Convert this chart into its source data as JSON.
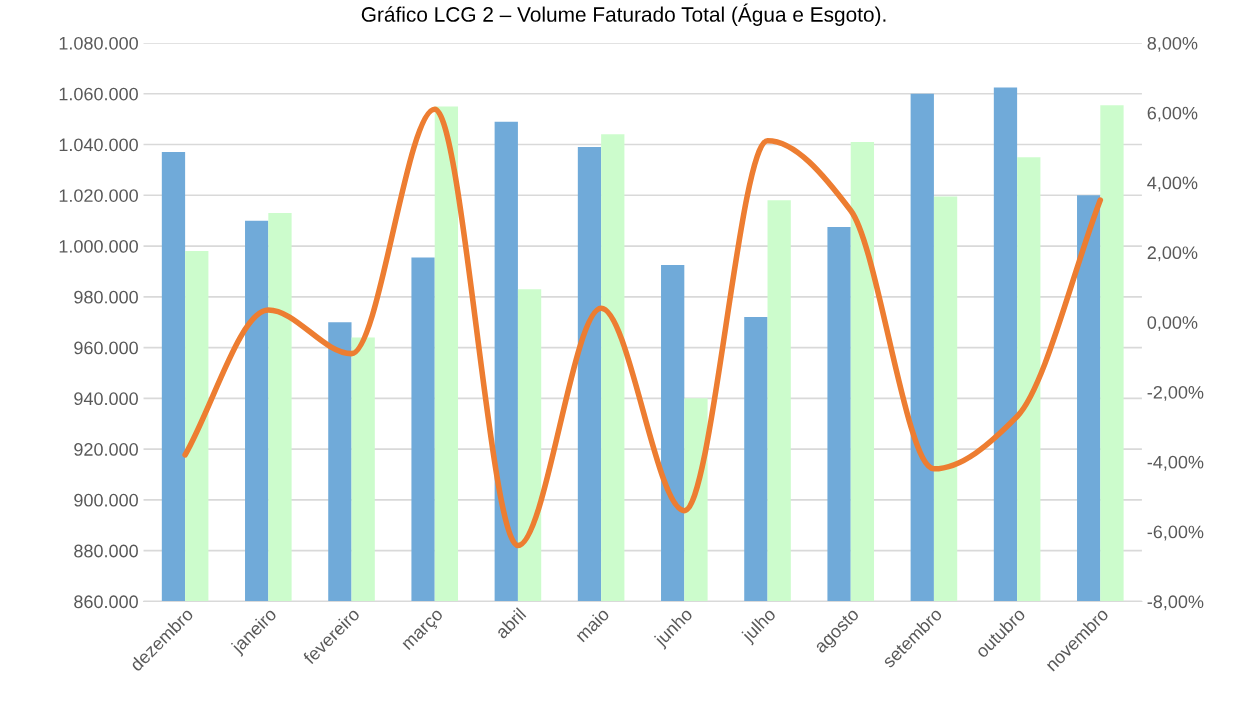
{
  "chart_data": {
    "type": "bar",
    "title": "Gráfico LCG 2 – Volume Faturado Total (Água e Esgoto).",
    "categories": [
      "dezembro",
      "janeiro",
      "fevereiro",
      "março",
      "abril",
      "maio",
      "junho",
      "julho",
      "agosto",
      "setembro",
      "outubro",
      "novembro"
    ],
    "series": [
      {
        "color": "#70aad9",
        "values": [
          1037000,
          1010000,
          970000,
          995500,
          1049000,
          1039000,
          992500,
          972000,
          1007500,
          1060000,
          1062500,
          1020000
        ]
      },
      {
        "color": "#ccfccc",
        "values": [
          998000,
          1013000,
          964000,
          1055000,
          983000,
          1044000,
          940000,
          1018000,
          1041000,
          1019500,
          1035000,
          1055500
        ]
      },
      {
        "type": "line",
        "axis": "y2",
        "color": "#ed7d31",
        "values": [
          -3.8,
          0.35,
          -0.9,
          6.1,
          -6.4,
          0.4,
          -5.4,
          5.2,
          3.2,
          -4.2,
          -2.7,
          3.5
        ]
      }
    ],
    "ylim": [
      860000,
      1080000
    ],
    "yticks": [
      {
        "value": 860000,
        "label": "860.000"
      },
      {
        "value": 880000,
        "label": "880.000"
      },
      {
        "value": 900000,
        "label": "900.000"
      },
      {
        "value": 920000,
        "label": "920.000"
      },
      {
        "value": 940000,
        "label": "940.000"
      },
      {
        "value": 960000,
        "label": "960.000"
      },
      {
        "value": 980000,
        "label": "980.000"
      },
      {
        "value": 1000000,
        "label": "1.000.000"
      },
      {
        "value": 1020000,
        "label": "1.020.000"
      },
      {
        "value": 1040000,
        "label": "1.040.000"
      },
      {
        "value": 1060000,
        "label": "1.060.000"
      },
      {
        "value": 1080000,
        "label": "1.080.000"
      }
    ],
    "y2lim": [
      -8,
      8
    ],
    "y2ticks": [
      {
        "value": -8,
        "label": "-8,00%"
      },
      {
        "value": -6,
        "label": "-6,00%"
      },
      {
        "value": -4,
        "label": "-4,00%"
      },
      {
        "value": -2,
        "label": "-2,00%"
      },
      {
        "value": 0,
        "label": "0,00%"
      },
      {
        "value": 2,
        "label": "2,00%"
      },
      {
        "value": 4,
        "label": "4,00%"
      },
      {
        "value": 6,
        "label": "6,00%"
      },
      {
        "value": 8,
        "label": "8,00%"
      }
    ],
    "grid": "y"
  }
}
